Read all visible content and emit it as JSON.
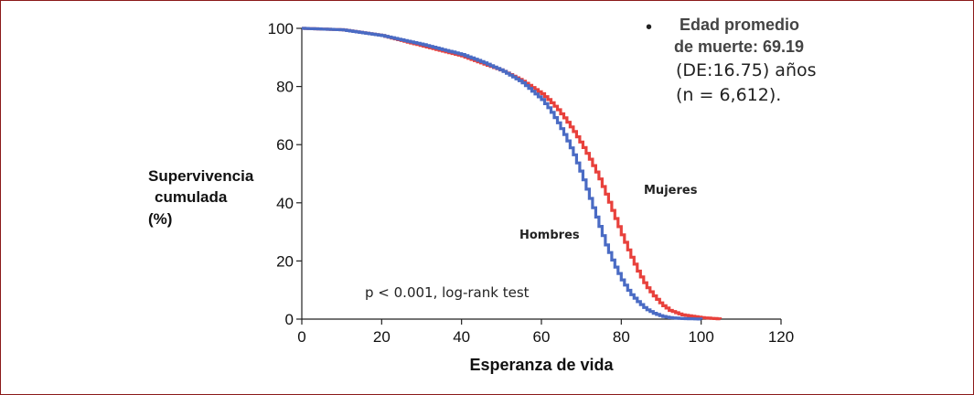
{
  "note": {
    "bullet": "•",
    "line1": "Edad promedio",
    "line2": "de muerte: 69.19",
    "line3": "(DE:16.75) años",
    "line4": "(n = 6,612)."
  },
  "annotation": "p < 0.001, log-rank test",
  "colors": {
    "Hombres": "#4a6bc4",
    "Mujeres": "#e8413c",
    "axis": "#222222",
    "frame": "#8b1a1a"
  },
  "chart_data": {
    "type": "line",
    "title": "",
    "xlabel": "Esperanza de vida",
    "ylabel": [
      "Supervivencia",
      "cumulada",
      "(%)"
    ],
    "xlim": [
      0,
      120
    ],
    "ylim": [
      0,
      100
    ],
    "xticks": [
      "0",
      "20",
      "40",
      "60",
      "80",
      "100",
      "120"
    ],
    "yticks": [
      "0",
      "20",
      "40",
      "60",
      "80",
      "100"
    ],
    "grid": false,
    "series": [
      {
        "name": "Hombres",
        "x": [
          0,
          10,
          20,
          30,
          40,
          45,
          50,
          55,
          60,
          62,
          64,
          66,
          68,
          70,
          72,
          74,
          76,
          78,
          80,
          82,
          84,
          86,
          88,
          90,
          92,
          95,
          100
        ],
        "y": [
          100,
          99.5,
          97.5,
          94.5,
          91,
          88.5,
          85.5,
          81.5,
          75.5,
          72,
          67.5,
          62.5,
          56.5,
          49.5,
          41.5,
          33.5,
          25.5,
          19,
          13.5,
          9,
          6,
          3.5,
          2,
          1,
          0.5,
          0.2,
          0
        ]
      },
      {
        "name": "Mujeres",
        "x": [
          0,
          10,
          20,
          30,
          40,
          45,
          50,
          55,
          60,
          62,
          64,
          66,
          68,
          70,
          72,
          74,
          76,
          78,
          80,
          82,
          84,
          86,
          88,
          90,
          92,
          95,
          100,
          105
        ],
        "y": [
          100,
          99.5,
          97.5,
          94,
          90.5,
          88,
          85.5,
          82,
          77.5,
          75,
          72,
          68.5,
          64.5,
          60,
          55,
          49.5,
          43,
          36,
          29,
          22.5,
          16.5,
          11.5,
          8,
          5,
          3,
          1.5,
          0.5,
          0
        ]
      }
    ],
    "series_labels": [
      "Hombres",
      "Mujeres"
    ]
  }
}
